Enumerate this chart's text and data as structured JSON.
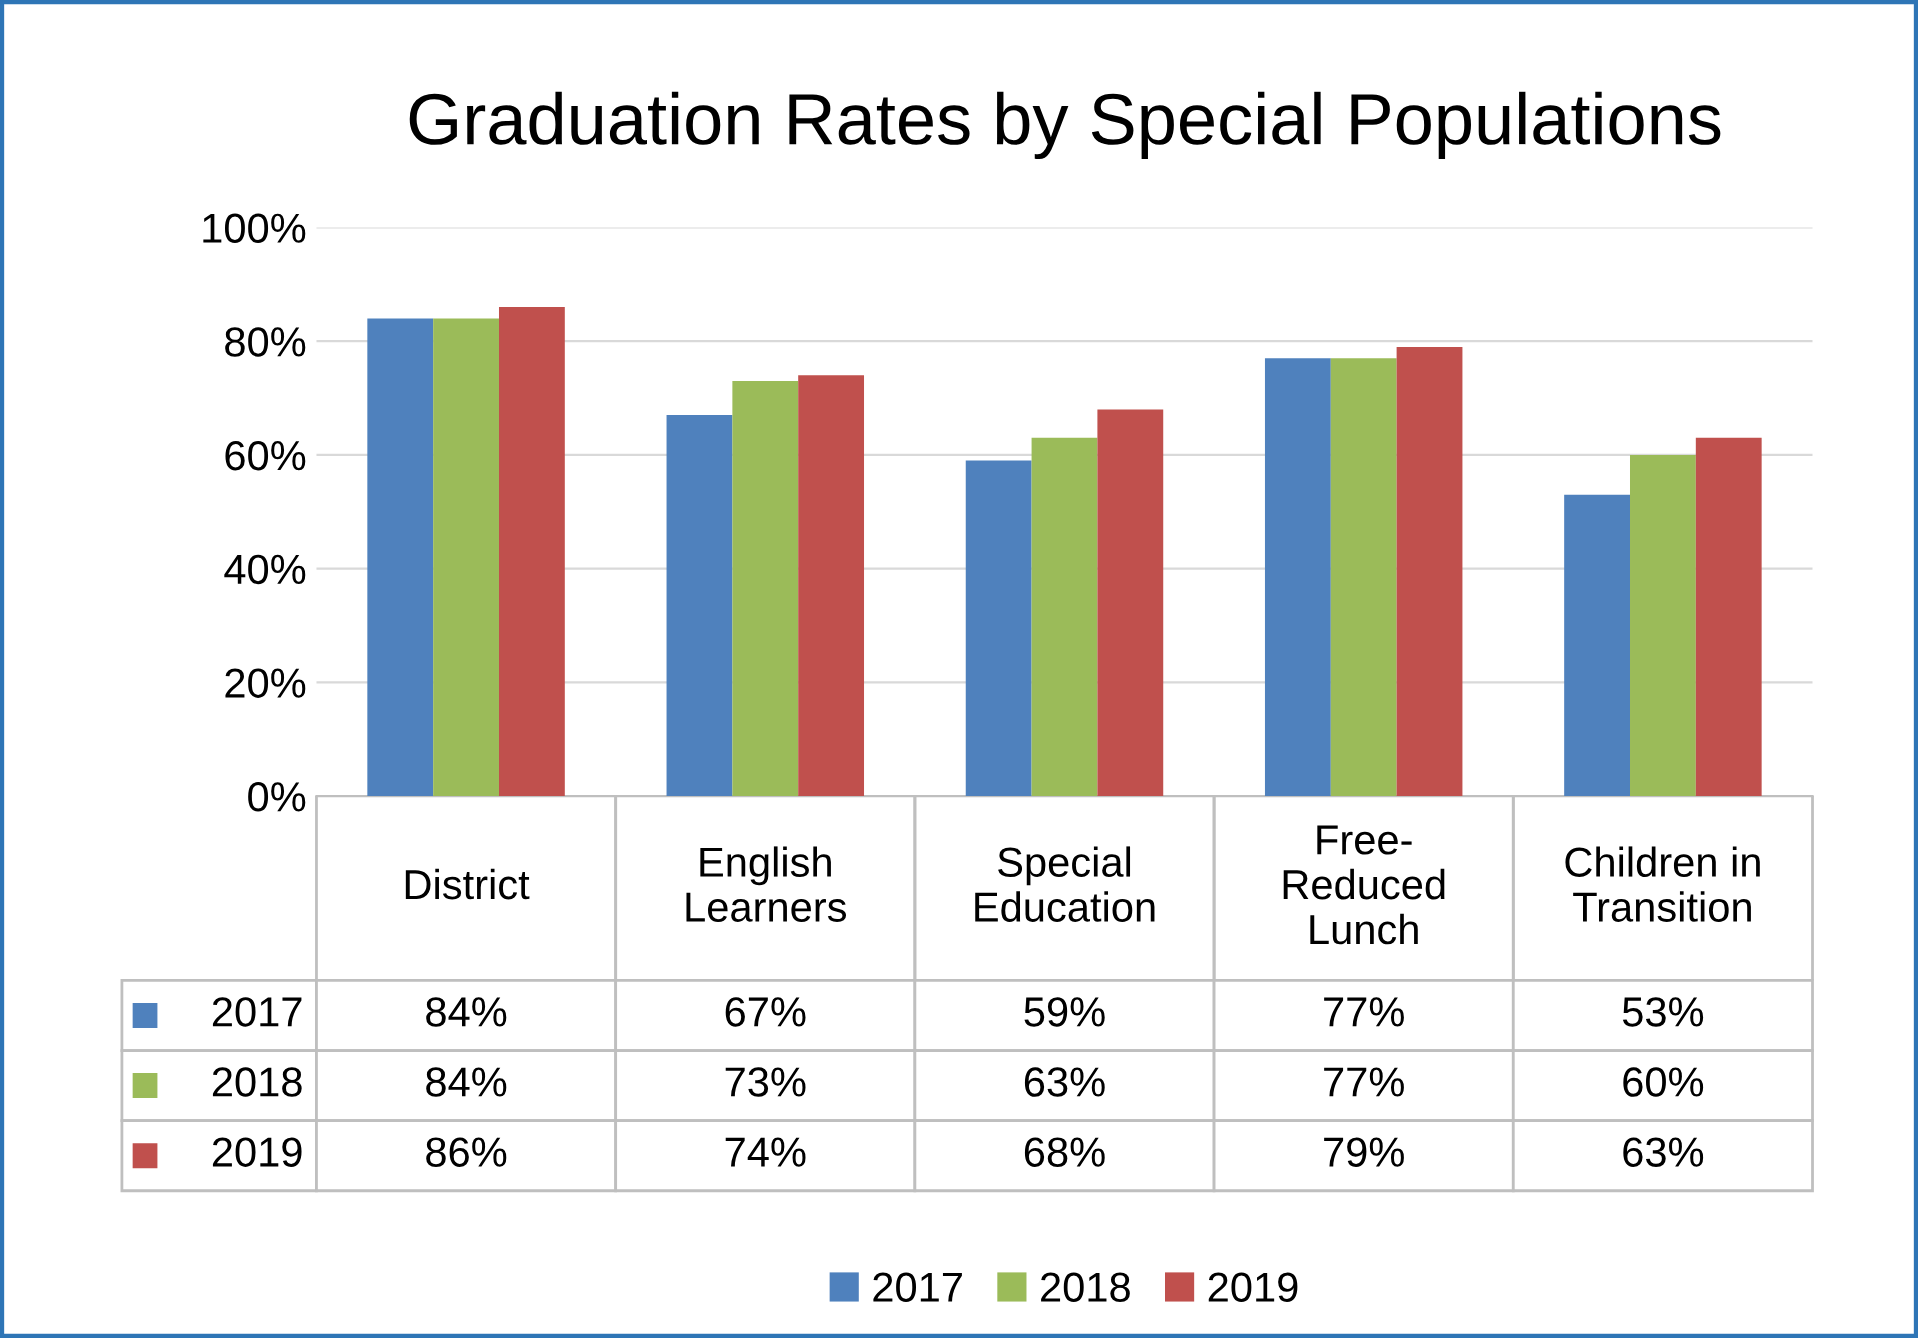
{
  "chart_data": {
    "type": "bar",
    "title": "Graduation Rates by Special Populations",
    "categories": [
      "District",
      "English\nLearners",
      "Special\nEducation",
      "Free-\nReduced\nLunch",
      "Children in\nTransition"
    ],
    "series": [
      {
        "name": "2017",
        "color": "#4f81bd",
        "values": [
          84,
          67,
          59,
          77,
          53
        ],
        "value_labels": [
          "84%",
          "67%",
          "59%",
          "77%",
          "53%"
        ]
      },
      {
        "name": "2018",
        "color": "#9bbb59",
        "values": [
          84,
          73,
          63,
          77,
          60
        ],
        "value_labels": [
          "84%",
          "73%",
          "63%",
          "77%",
          "60%"
        ]
      },
      {
        "name": "2019",
        "color": "#c0504d",
        "values": [
          86,
          74,
          68,
          79,
          63
        ],
        "value_labels": [
          "86%",
          "74%",
          "68%",
          "79%",
          "63%"
        ]
      }
    ],
    "ylim": [
      0,
      100
    ],
    "yticks": [
      {
        "value": 0,
        "label": "0%"
      },
      {
        "value": 20,
        "label": "20%"
      },
      {
        "value": 40,
        "label": "40%"
      },
      {
        "value": 60,
        "label": "60%"
      },
      {
        "value": 80,
        "label": "80%"
      },
      {
        "value": 100,
        "label": "100%"
      }
    ],
    "grid": "y",
    "legend": "bottom"
  }
}
